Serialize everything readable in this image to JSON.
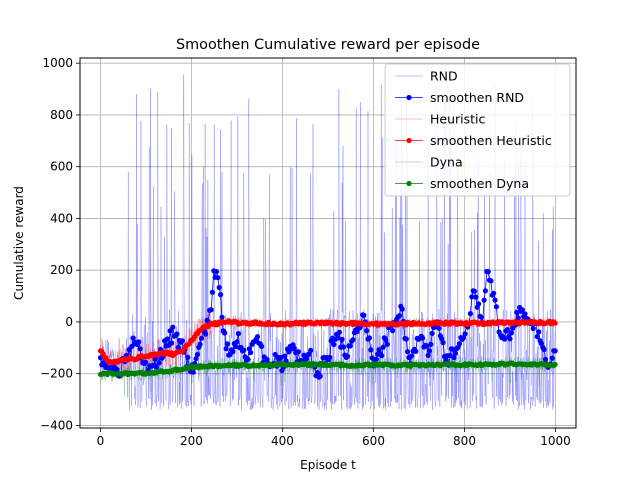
{
  "chart_data": {
    "type": "line",
    "title": "Smoothen Cumulative reward per episode",
    "xlabel": "Episode t",
    "ylabel": "Cumulative reward",
    "xlim": [
      -45,
      1045
    ],
    "ylim": [
      -410,
      1020
    ],
    "xticks": [
      0,
      200,
      400,
      600,
      800,
      1000
    ],
    "yticks": [
      -400,
      -200,
      0,
      200,
      400,
      600,
      800,
      1000
    ],
    "grid": true,
    "legend_position": "top-right",
    "series_defs": [
      {
        "name": "RND",
        "color": "#0000ff",
        "style": "raw"
      },
      {
        "name": "smoothen RND",
        "color": "#0000ff",
        "style": "smooth"
      },
      {
        "name": "Heuristic",
        "color": "#ff0000",
        "style": "raw"
      },
      {
        "name": "smoothen Heuristic",
        "color": "#ff0000",
        "style": "smooth"
      },
      {
        "name": "Dyna",
        "color": "#008000",
        "style": "raw"
      },
      {
        "name": "smoothen Dyna",
        "color": "#008000",
        "style": "smooth"
      }
    ],
    "smoothen_RND_keypoints": {
      "x": [
        0,
        20,
        40,
        60,
        80,
        100,
        120,
        140,
        160,
        180,
        200,
        220,
        240,
        250,
        260,
        270,
        280,
        300,
        320,
        340,
        360,
        380,
        400,
        420,
        440,
        460,
        480,
        500,
        520,
        540,
        560,
        580,
        600,
        620,
        640,
        660,
        680,
        700,
        720,
        740,
        760,
        780,
        800,
        820,
        840,
        850,
        860,
        880,
        900,
        920,
        940,
        960,
        980,
        990
      ],
      "y": [
        -140,
        -170,
        -190,
        -140,
        -60,
        -190,
        -160,
        -100,
        -40,
        -100,
        -200,
        -80,
        20,
        200,
        150,
        -30,
        -120,
        -60,
        -130,
        -60,
        -150,
        -140,
        -170,
        -100,
        -150,
        -130,
        -200,
        -130,
        -20,
        -150,
        -50,
        20,
        -150,
        -100,
        -20,
        60,
        -160,
        -60,
        -120,
        0,
        -160,
        -100,
        -60,
        100,
        20,
        200,
        120,
        -60,
        -40,
        50,
        0,
        -40,
        -150,
        -140
      ]
    },
    "smoothen_Heuristic_keypoints": {
      "x": [
        0,
        10,
        20,
        40,
        60,
        80,
        100,
        120,
        140,
        160,
        180,
        200,
        220,
        240,
        260,
        280,
        300,
        350,
        400,
        450,
        500,
        550,
        600,
        650,
        700,
        750,
        800,
        850,
        900,
        950,
        990
      ],
      "y": [
        -110,
        -140,
        -155,
        -150,
        -145,
        -140,
        -130,
        -125,
        -120,
        -125,
        -110,
        -70,
        -30,
        -10,
        -5,
        0,
        -3,
        -5,
        -8,
        -5,
        -5,
        -5,
        -8,
        -8,
        -5,
        -5,
        -5,
        -5,
        -3,
        -3,
        -2
      ]
    },
    "smoothen_Dyna_keypoints": {
      "x": [
        0,
        50,
        100,
        150,
        200,
        250,
        300,
        350,
        400,
        450,
        500,
        550,
        600,
        650,
        700,
        750,
        800,
        850,
        900,
        950,
        990
      ],
      "y": [
        -200,
        -200,
        -198,
        -190,
        -175,
        -170,
        -168,
        -168,
        -165,
        -165,
        -165,
        -168,
        -165,
        -168,
        -168,
        -165,
        -165,
        -165,
        -162,
        -165,
        -165
      ]
    }
  }
}
